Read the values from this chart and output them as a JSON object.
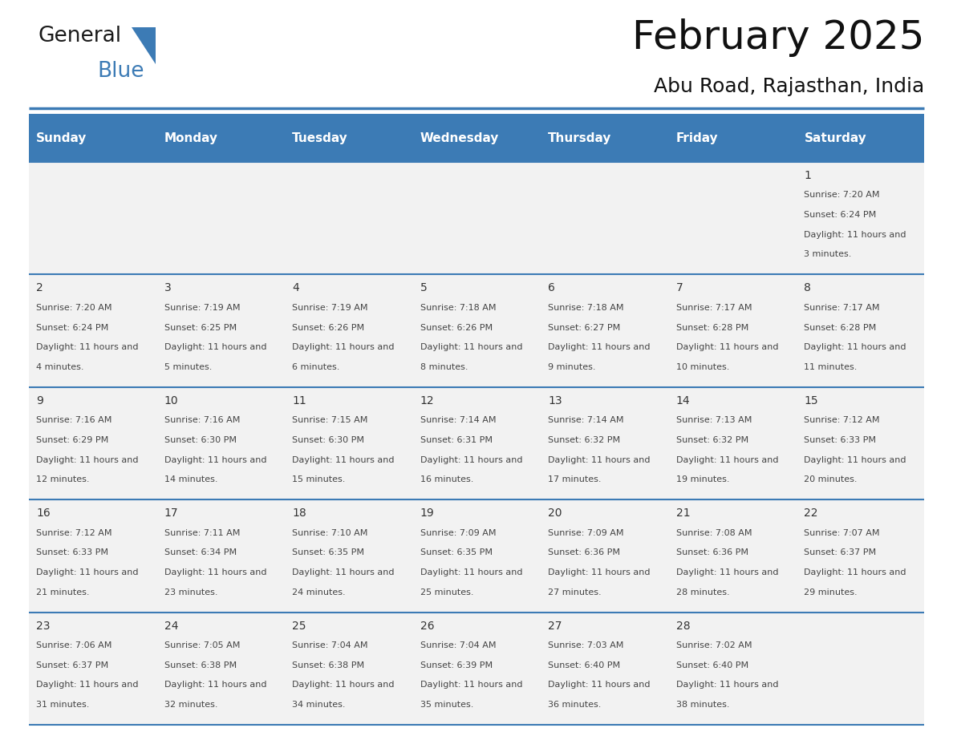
{
  "title": "February 2025",
  "subtitle": "Abu Road, Rajasthan, India",
  "header_bg_color": "#3C7BB5",
  "header_text_color": "#FFFFFF",
  "day_names": [
    "Sunday",
    "Monday",
    "Tuesday",
    "Wednesday",
    "Thursday",
    "Friday",
    "Saturday"
  ],
  "row_bg_color": "#F2F2F2",
  "cell_text_color": "#444444",
  "cell_num_color": "#333333",
  "border_color": "#3C7BB5",
  "bg_color": "#FFFFFF",
  "calendar": [
    [
      {
        "day": null,
        "sunrise": null,
        "sunset": null,
        "daylight": null
      },
      {
        "day": null,
        "sunrise": null,
        "sunset": null,
        "daylight": null
      },
      {
        "day": null,
        "sunrise": null,
        "sunset": null,
        "daylight": null
      },
      {
        "day": null,
        "sunrise": null,
        "sunset": null,
        "daylight": null
      },
      {
        "day": null,
        "sunrise": null,
        "sunset": null,
        "daylight": null
      },
      {
        "day": null,
        "sunrise": null,
        "sunset": null,
        "daylight": null
      },
      {
        "day": 1,
        "sunrise": "7:20 AM",
        "sunset": "6:24 PM",
        "daylight": "11 hours and 3 minutes."
      }
    ],
    [
      {
        "day": 2,
        "sunrise": "7:20 AM",
        "sunset": "6:24 PM",
        "daylight": "11 hours and 4 minutes."
      },
      {
        "day": 3,
        "sunrise": "7:19 AM",
        "sunset": "6:25 PM",
        "daylight": "11 hours and 5 minutes."
      },
      {
        "day": 4,
        "sunrise": "7:19 AM",
        "sunset": "6:26 PM",
        "daylight": "11 hours and 6 minutes."
      },
      {
        "day": 5,
        "sunrise": "7:18 AM",
        "sunset": "6:26 PM",
        "daylight": "11 hours and 8 minutes."
      },
      {
        "day": 6,
        "sunrise": "7:18 AM",
        "sunset": "6:27 PM",
        "daylight": "11 hours and 9 minutes."
      },
      {
        "day": 7,
        "sunrise": "7:17 AM",
        "sunset": "6:28 PM",
        "daylight": "11 hours and 10 minutes."
      },
      {
        "day": 8,
        "sunrise": "7:17 AM",
        "sunset": "6:28 PM",
        "daylight": "11 hours and 11 minutes."
      }
    ],
    [
      {
        "day": 9,
        "sunrise": "7:16 AM",
        "sunset": "6:29 PM",
        "daylight": "11 hours and 12 minutes."
      },
      {
        "day": 10,
        "sunrise": "7:16 AM",
        "sunset": "6:30 PM",
        "daylight": "11 hours and 14 minutes."
      },
      {
        "day": 11,
        "sunrise": "7:15 AM",
        "sunset": "6:30 PM",
        "daylight": "11 hours and 15 minutes."
      },
      {
        "day": 12,
        "sunrise": "7:14 AM",
        "sunset": "6:31 PM",
        "daylight": "11 hours and 16 minutes."
      },
      {
        "day": 13,
        "sunrise": "7:14 AM",
        "sunset": "6:32 PM",
        "daylight": "11 hours and 17 minutes."
      },
      {
        "day": 14,
        "sunrise": "7:13 AM",
        "sunset": "6:32 PM",
        "daylight": "11 hours and 19 minutes."
      },
      {
        "day": 15,
        "sunrise": "7:12 AM",
        "sunset": "6:33 PM",
        "daylight": "11 hours and 20 minutes."
      }
    ],
    [
      {
        "day": 16,
        "sunrise": "7:12 AM",
        "sunset": "6:33 PM",
        "daylight": "11 hours and 21 minutes."
      },
      {
        "day": 17,
        "sunrise": "7:11 AM",
        "sunset": "6:34 PM",
        "daylight": "11 hours and 23 minutes."
      },
      {
        "day": 18,
        "sunrise": "7:10 AM",
        "sunset": "6:35 PM",
        "daylight": "11 hours and 24 minutes."
      },
      {
        "day": 19,
        "sunrise": "7:09 AM",
        "sunset": "6:35 PM",
        "daylight": "11 hours and 25 minutes."
      },
      {
        "day": 20,
        "sunrise": "7:09 AM",
        "sunset": "6:36 PM",
        "daylight": "11 hours and 27 minutes."
      },
      {
        "day": 21,
        "sunrise": "7:08 AM",
        "sunset": "6:36 PM",
        "daylight": "11 hours and 28 minutes."
      },
      {
        "day": 22,
        "sunrise": "7:07 AM",
        "sunset": "6:37 PM",
        "daylight": "11 hours and 29 minutes."
      }
    ],
    [
      {
        "day": 23,
        "sunrise": "7:06 AM",
        "sunset": "6:37 PM",
        "daylight": "11 hours and 31 minutes."
      },
      {
        "day": 24,
        "sunrise": "7:05 AM",
        "sunset": "6:38 PM",
        "daylight": "11 hours and 32 minutes."
      },
      {
        "day": 25,
        "sunrise": "7:04 AM",
        "sunset": "6:38 PM",
        "daylight": "11 hours and 34 minutes."
      },
      {
        "day": 26,
        "sunrise": "7:04 AM",
        "sunset": "6:39 PM",
        "daylight": "11 hours and 35 minutes."
      },
      {
        "day": 27,
        "sunrise": "7:03 AM",
        "sunset": "6:40 PM",
        "daylight": "11 hours and 36 minutes."
      },
      {
        "day": 28,
        "sunrise": "7:02 AM",
        "sunset": "6:40 PM",
        "daylight": "11 hours and 38 minutes."
      },
      {
        "day": null,
        "sunrise": null,
        "sunset": null,
        "daylight": null
      }
    ]
  ],
  "logo_text1": "General",
  "logo_text2": "Blue",
  "logo_text1_color": "#1a1a1a",
  "logo_text2_color": "#3C7BB5",
  "logo_triangle_color": "#3C7BB5",
  "title_fontsize": 36,
  "subtitle_fontsize": 18,
  "header_fontsize": 11,
  "daynum_fontsize": 10,
  "cell_fontsize": 8
}
